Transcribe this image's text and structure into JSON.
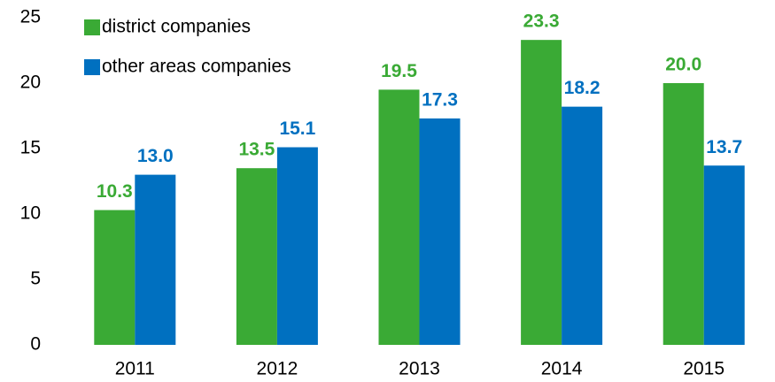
{
  "chart_data": {
    "type": "bar",
    "categories": [
      "2011",
      "2012",
      "2013",
      "2014",
      "2015"
    ],
    "series": [
      {
        "name": "district companies",
        "color": "#3aaa35",
        "values": [
          10.3,
          13.5,
          19.5,
          23.3,
          20.0
        ],
        "value_labels": [
          "10.3",
          "13.5",
          "19.5",
          "23.3",
          "20.0"
        ]
      },
      {
        "name": "other areas companies",
        "color": "#0070c0",
        "values": [
          13.0,
          15.1,
          17.3,
          18.2,
          13.7
        ],
        "value_labels": [
          "13.0",
          "15.1",
          "17.3",
          "18.2",
          "13.7"
        ]
      }
    ],
    "ylim": [
      0,
      25
    ],
    "yticks": [
      0,
      5,
      10,
      15,
      20,
      25
    ],
    "grid": false,
    "legend": "top-left"
  }
}
